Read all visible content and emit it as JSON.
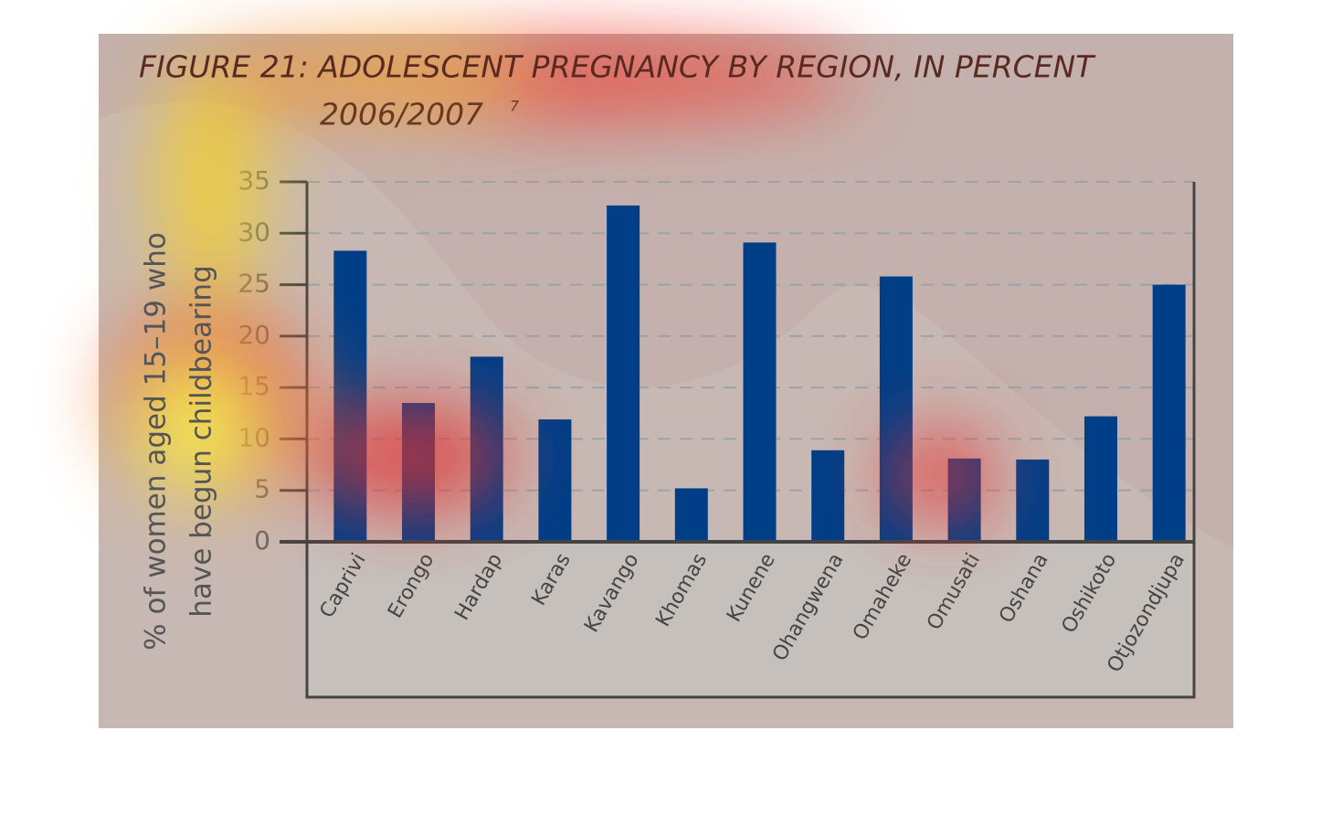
{
  "chart_data": {
    "type": "bar",
    "title": "FIGURE 21: ADOLESCENT PREGNANCY BY REGION, IN PERCENT",
    "subtitle": "2006/2007",
    "title_note": "7",
    "ylabel": [
      "% of women aged 15–19 who",
      "have begun childbearing"
    ],
    "categories": [
      "Caprivi",
      "Erongo",
      "Hardap",
      "Karas",
      "Kavango",
      "Khomas",
      "Kunene",
      "Ohangwena",
      "Omaheke",
      "Omusati",
      "Oshana",
      "Oshikoto",
      "Otjozondjupa"
    ],
    "values": [
      28.3,
      13.5,
      18.0,
      11.9,
      32.7,
      5.2,
      29.1,
      8.9,
      25.8,
      8.1,
      8.0,
      12.2,
      25.0
    ],
    "color": "#003f87",
    "ylim": [
      0,
      35
    ],
    "yticks": [
      0,
      5,
      10,
      15,
      20,
      25,
      30,
      35
    ],
    "grid": true
  }
}
